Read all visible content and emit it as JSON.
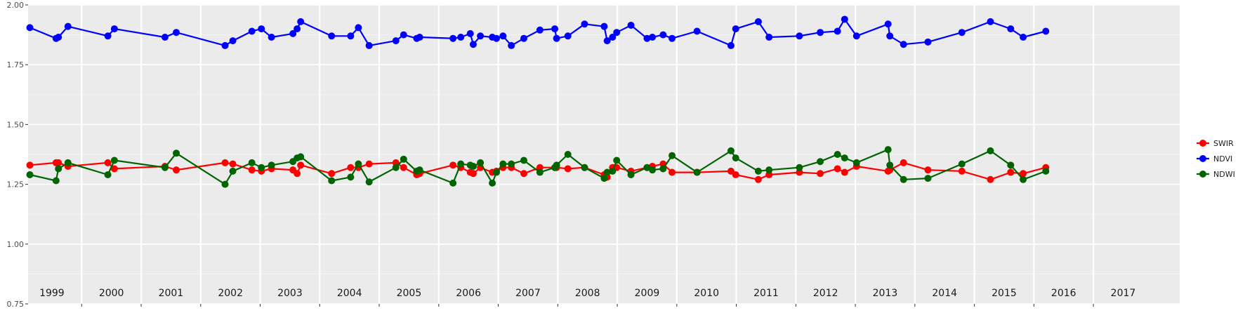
{
  "chart_data": {
    "type": "line",
    "title": "",
    "xlabel": "",
    "ylabel": "",
    "ylim": [
      0.75,
      2.0
    ],
    "xlim": [
      1998.6,
      2017.95
    ],
    "y_ticks": [
      "0.75",
      "1.00",
      "1.25",
      "1.50",
      "1.75",
      "2.00"
    ],
    "y_tick_values": [
      0.75,
      1.0,
      1.25,
      1.5,
      1.75,
      2.0
    ],
    "year_labels": [
      "1999",
      "2000",
      "2001",
      "2002",
      "2003",
      "2004",
      "2005",
      "2006",
      "2007",
      "2008",
      "2009",
      "2010",
      "2011",
      "2012",
      "2013",
      "2014",
      "2015",
      "2016",
      "2017"
    ],
    "grid": true,
    "legend_position": "right",
    "series": [
      {
        "name": "SWIR",
        "color": "#ff0000",
        "x": [
          1998.63,
          1999.07,
          1999.11,
          1999.27,
          1999.94,
          2000.05,
          2000.9,
          2001.09,
          2001.91,
          2002.04,
          2002.36,
          2002.52,
          2002.69,
          2003.05,
          2003.12,
          2003.18,
          2003.7,
          2004.02,
          2004.15,
          2004.33,
          2004.78,
          2004.91,
          2005.13,
          2005.18,
          2005.74,
          2005.87,
          2006.03,
          2006.08,
          2006.2,
          2006.4,
          2006.47,
          2006.58,
          2006.72,
          2006.93,
          2007.2,
          2007.45,
          2007.48,
          2007.67,
          2007.95,
          2008.28,
          2008.33,
          2008.42,
          2008.49,
          2008.73,
          2009.0,
          2009.09,
          2009.27,
          2009.42,
          2009.84,
          2010.41,
          2010.49,
          2010.87,
          2011.05,
          2011.56,
          2011.91,
          2012.2,
          2012.32,
          2012.52,
          2013.05,
          2013.08,
          2013.31,
          2013.72,
          2014.29,
          2014.77,
          2015.11,
          2015.32,
          2015.7
        ],
        "values": [
          1.33,
          1.34,
          1.34,
          1.325,
          1.34,
          1.315,
          1.325,
          1.31,
          1.34,
          1.335,
          1.31,
          1.305,
          1.315,
          1.31,
          1.295,
          1.33,
          1.295,
          1.32,
          1.32,
          1.335,
          1.34,
          1.32,
          1.29,
          1.295,
          1.33,
          1.32,
          1.3,
          1.295,
          1.32,
          1.3,
          1.305,
          1.32,
          1.32,
          1.295,
          1.32,
          1.32,
          1.32,
          1.315,
          1.32,
          1.29,
          1.28,
          1.32,
          1.32,
          1.305,
          1.32,
          1.325,
          1.335,
          1.3,
          1.3,
          1.305,
          1.29,
          1.27,
          1.29,
          1.3,
          1.295,
          1.315,
          1.3,
          1.325,
          1.305,
          1.31,
          1.34,
          1.31,
          1.305,
          1.27,
          1.3,
          1.295,
          1.32
        ]
      },
      {
        "name": "NDVI",
        "color": "#0000ff",
        "x": [
          1998.63,
          1999.07,
          1999.11,
          1999.27,
          1999.94,
          2000.05,
          2000.9,
          2001.09,
          2001.91,
          2002.04,
          2002.36,
          2002.52,
          2002.69,
          2003.05,
          2003.12,
          2003.18,
          2003.7,
          2004.02,
          2004.15,
          2004.33,
          2004.78,
          2004.91,
          2005.13,
          2005.18,
          2005.74,
          2005.87,
          2006.03,
          2006.08,
          2006.2,
          2006.4,
          2006.47,
          2006.58,
          2006.72,
          2006.93,
          2007.2,
          2007.45,
          2007.48,
          2007.67,
          2007.95,
          2008.28,
          2008.33,
          2008.42,
          2008.49,
          2008.73,
          2009.0,
          2009.09,
          2009.27,
          2009.42,
          2009.84,
          2010.41,
          2010.49,
          2010.87,
          2011.05,
          2011.56,
          2011.91,
          2012.2,
          2012.32,
          2012.52,
          2013.05,
          2013.08,
          2013.31,
          2013.72,
          2014.29,
          2014.77,
          2015.11,
          2015.32,
          2015.7
        ],
        "values": [
          1.905,
          1.86,
          1.865,
          1.91,
          1.87,
          1.9,
          1.865,
          1.885,
          1.83,
          1.85,
          1.89,
          1.9,
          1.865,
          1.88,
          1.9,
          1.93,
          1.87,
          1.87,
          1.905,
          1.83,
          1.85,
          1.875,
          1.86,
          1.865,
          1.86,
          1.865,
          1.88,
          1.835,
          1.87,
          1.865,
          1.86,
          1.87,
          1.83,
          1.86,
          1.895,
          1.9,
          1.86,
          1.87,
          1.92,
          1.91,
          1.85,
          1.865,
          1.885,
          1.915,
          1.86,
          1.865,
          1.875,
          1.86,
          1.89,
          1.83,
          1.9,
          1.93,
          1.865,
          1.87,
          1.885,
          1.89,
          1.94,
          1.87,
          1.92,
          1.87,
          1.835,
          1.845,
          1.885,
          1.93,
          1.9,
          1.865,
          1.89
        ]
      },
      {
        "name": "NDWI",
        "color": "#006400",
        "x": [
          1998.63,
          1999.07,
          1999.11,
          1999.27,
          1999.94,
          2000.05,
          2000.9,
          2001.09,
          2001.91,
          2002.04,
          2002.36,
          2002.52,
          2002.69,
          2003.05,
          2003.12,
          2003.18,
          2003.7,
          2004.02,
          2004.15,
          2004.33,
          2004.78,
          2004.91,
          2005.13,
          2005.18,
          2005.74,
          2005.87,
          2006.03,
          2006.08,
          2006.2,
          2006.4,
          2006.47,
          2006.58,
          2006.72,
          2006.93,
          2007.2,
          2007.45,
          2007.48,
          2007.67,
          2007.95,
          2008.28,
          2008.33,
          2008.42,
          2008.49,
          2008.73,
          2009.0,
          2009.09,
          2009.27,
          2009.42,
          2009.84,
          2010.41,
          2010.49,
          2010.87,
          2011.05,
          2011.56,
          2011.91,
          2012.2,
          2012.32,
          2012.52,
          2013.05,
          2013.08,
          2013.31,
          2013.72,
          2014.29,
          2014.77,
          2015.11,
          2015.32,
          2015.7
        ],
        "values": [
          1.29,
          1.265,
          1.315,
          1.34,
          1.29,
          1.35,
          1.32,
          1.38,
          1.25,
          1.305,
          1.34,
          1.32,
          1.33,
          1.345,
          1.36,
          1.365,
          1.265,
          1.28,
          1.335,
          1.26,
          1.32,
          1.355,
          1.305,
          1.31,
          1.255,
          1.335,
          1.33,
          1.325,
          1.34,
          1.255,
          1.3,
          1.335,
          1.335,
          1.35,
          1.3,
          1.32,
          1.33,
          1.375,
          1.32,
          1.275,
          1.3,
          1.305,
          1.35,
          1.29,
          1.32,
          1.31,
          1.315,
          1.37,
          1.3,
          1.39,
          1.36,
          1.305,
          1.31,
          1.32,
          1.345,
          1.375,
          1.36,
          1.34,
          1.395,
          1.33,
          1.27,
          1.275,
          1.335,
          1.39,
          1.33,
          1.27,
          1.305
        ]
      }
    ]
  }
}
